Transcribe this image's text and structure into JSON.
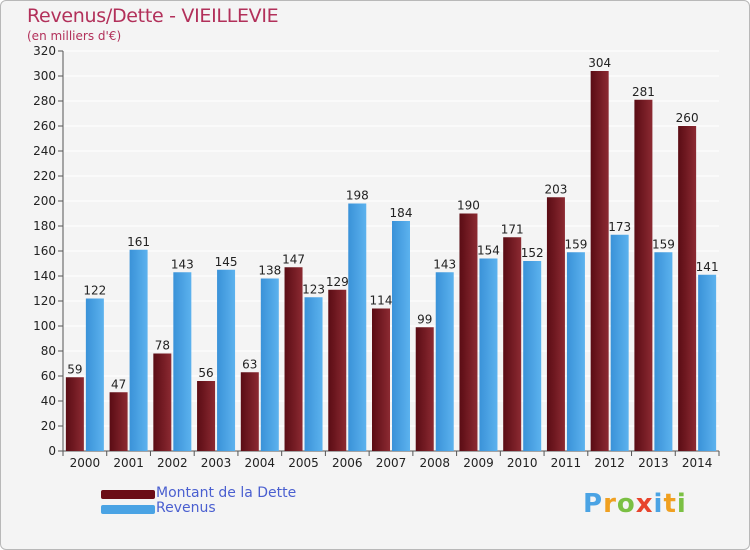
{
  "header": {
    "title": "Revenus/Dette - VIEILLEVIE",
    "subtitle": "(en milliers d'€)"
  },
  "chart_data": {
    "type": "bar",
    "title": "Revenus/Dette - VIEILLEVIE",
    "ylabel": "(en milliers d'€)",
    "xlabel": "",
    "ylim": [
      0,
      320
    ],
    "yticks": [
      0,
      20,
      40,
      60,
      80,
      100,
      120,
      140,
      160,
      180,
      200,
      220,
      240,
      260,
      280,
      300,
      320
    ],
    "grid": true,
    "categories": [
      "2000",
      "2001",
      "2002",
      "2003",
      "2004",
      "2005",
      "2006",
      "2007",
      "2008",
      "2009",
      "2010",
      "2011",
      "2012",
      "2013",
      "2014"
    ],
    "series": [
      {
        "name": "Montant de la Dette",
        "color": "#7a1c24",
        "values": [
          59,
          47,
          78,
          56,
          63,
          147,
          129,
          114,
          99,
          190,
          171,
          203,
          304,
          281,
          260
        ]
      },
      {
        "name": "Revenus",
        "color": "#4aa3e4",
        "values": [
          122,
          161,
          143,
          145,
          138,
          123,
          198,
          184,
          143,
          154,
          152,
          159,
          173,
          159,
          141
        ]
      }
    ],
    "legend_position": "bottom-left"
  },
  "legend": [
    {
      "label": "Montant de la Dette",
      "color": "#6b0d16"
    },
    {
      "label": "Revenus",
      "color": "#4aa3e4"
    }
  ],
  "logo": {
    "letters": [
      "P",
      "r",
      "o",
      "x",
      "i",
      "t",
      "i"
    ],
    "colors": [
      "#4aa3e4",
      "#f0a020",
      "#7bc043",
      "#e8442c",
      "#4aa3e4",
      "#f0a020",
      "#7bc043"
    ]
  }
}
